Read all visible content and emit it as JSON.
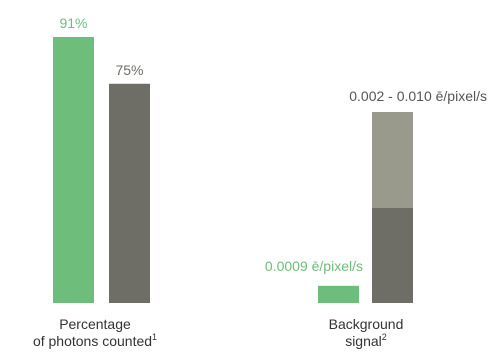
{
  "chart_data": [
    {
      "type": "bar",
      "categories": [
        "Percentage of photons counted"
      ],
      "category_lines": [
        "Percentage",
        "of photons counted"
      ],
      "category_footnote": "1",
      "series": [
        {
          "values": [
            91
          ],
          "label": "91%",
          "color": "#6ebd7a"
        },
        {
          "values": [
            75
          ],
          "label": "75%",
          "color": "#6e6d66"
        }
      ],
      "ylim": [
        0,
        100
      ]
    },
    {
      "type": "bar",
      "categories": [
        "Background signal"
      ],
      "category_lines": [
        "Background",
        "signal"
      ],
      "category_footnote": "2",
      "series": [
        {
          "values": [
            0.0009
          ],
          "label": "0.0009 ē/pixel/s",
          "color": "#6ebd7a"
        },
        {
          "range": [
            0.002,
            0.01
          ],
          "label": "0.002 - 0.010 ē/pixel/s",
          "color_low": "#6e6d66",
          "color_high": "#999a8c"
        }
      ],
      "ylim": [
        0,
        0.0115
      ]
    }
  ]
}
